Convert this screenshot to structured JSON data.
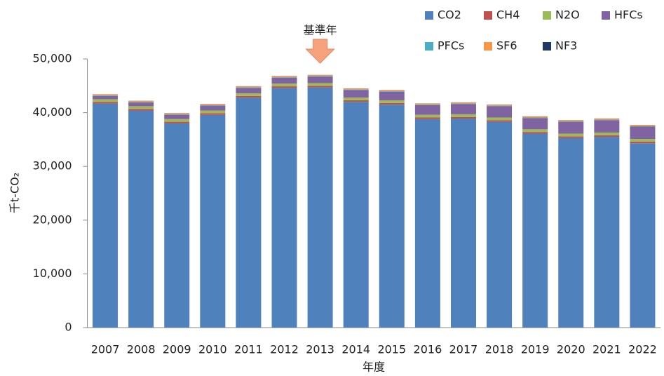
{
  "chart_data": {
    "type": "stacked_bar",
    "categories": [
      "2007",
      "2008",
      "2009",
      "2010",
      "2011",
      "2012",
      "2013",
      "2014",
      "2015",
      "2016",
      "2017",
      "2018",
      "2019",
      "2020",
      "2021",
      "2022"
    ],
    "series": [
      {
        "name": "CO2",
        "color": "#4f81bd",
        "values": [
          41700,
          40400,
          38000,
          39600,
          42800,
          44600,
          44700,
          42000,
          41500,
          38800,
          38900,
          38300,
          36100,
          35300,
          35500,
          34300
        ]
      },
      {
        "name": "CH4",
        "color": "#c0504d",
        "values": [
          300,
          300,
          300,
          300,
          300,
          300,
          300,
          300,
          300,
          300,
          300,
          300,
          300,
          300,
          300,
          300
        ]
      },
      {
        "name": "N2O",
        "color": "#9bbb59",
        "values": [
          500,
          500,
          500,
          500,
          500,
          500,
          500,
          500,
          500,
          500,
          500,
          500,
          500,
          500,
          500,
          500
        ]
      },
      {
        "name": "HFCs",
        "color": "#8064a2",
        "values": [
          600,
          700,
          800,
          900,
          1000,
          1100,
          1200,
          1400,
          1600,
          1800,
          1900,
          2100,
          2100,
          2200,
          2300,
          2300
        ]
      },
      {
        "name": "PFCs",
        "color": "#4bacc6",
        "values": [
          100,
          100,
          100,
          100,
          100,
          100,
          100,
          100,
          100,
          100,
          100,
          100,
          100,
          100,
          100,
          100
        ]
      },
      {
        "name": "SF6",
        "color": "#f79646",
        "values": [
          200,
          200,
          200,
          200,
          200,
          200,
          200,
          200,
          200,
          200,
          200,
          200,
          200,
          200,
          200,
          200
        ]
      },
      {
        "name": "NF3",
        "color": "#1f3864",
        "values": [
          20,
          20,
          20,
          20,
          20,
          20,
          20,
          20,
          20,
          20,
          20,
          20,
          20,
          20,
          20,
          20
        ]
      }
    ],
    "ylim": [
      0,
      50000
    ],
    "yticks": [
      0,
      {
        "value": 10000,
        "label": "10,000"
      },
      {
        "value": 20000,
        "label": "20,000"
      },
      {
        "value": 30000,
        "label": "30,000"
      },
      {
        "value": 40000,
        "label": "40,000"
      },
      {
        "value": 50000,
        "label": "50,000"
      }
    ],
    "ylabel": "千t-CO₂",
    "xlabel": "年度",
    "annotation": {
      "text": "基準年",
      "category": "2013"
    },
    "legend": "top-right"
  }
}
